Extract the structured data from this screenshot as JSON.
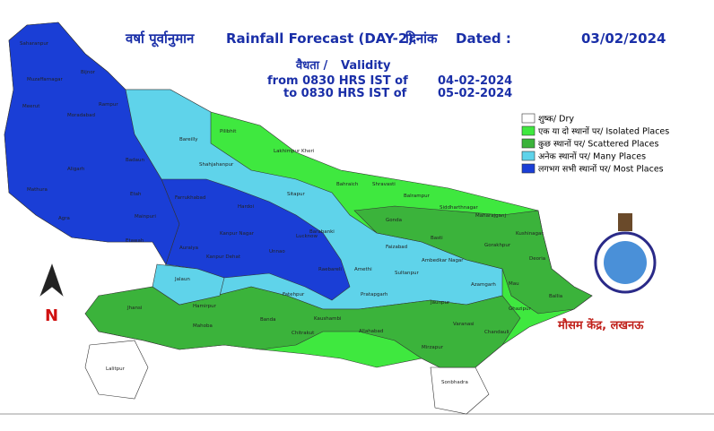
{
  "header": {
    "title_hindi": "वर्षा पूर्वानुमान",
    "title": "Rainfall Forecast (DAY-2)",
    "date_label_hindi": "दिनांक",
    "date_label": "Dated :",
    "date": "03/02/2024"
  },
  "validity": {
    "label_hindi": "वैधता /",
    "label": "Validity",
    "from_line": "from 0830 HRS IST of",
    "from_date": "04-02-2024",
    "to_line": "to 0830 HRS IST of",
    "to_date": "05-02-2024"
  },
  "legend": {
    "items": [
      {
        "label": "शुष्क/ Dry",
        "color": "#ffffff"
      },
      {
        "label": "एक या दो स्थानों पर/ Isolated Places",
        "color": "#3fe83f"
      },
      {
        "label": "कुछ स्थानों पर/ Scattered Places",
        "color": "#3bb33b"
      },
      {
        "label": "अनेक स्थानों पर/ Many Places",
        "color": "#5fd3ea"
      },
      {
        "label": "लगभग सभी स्थानों पर/ Most Places",
        "color": "#1a3ed6"
      }
    ]
  },
  "office": "मौसम केंद्र, लखनऊ",
  "north": "N",
  "districts": [
    "Saharanpur",
    "Muzaffarnagar",
    "Bijnor",
    "Meerut",
    "Moradabad",
    "Rampur",
    "Bareilly",
    "Pilibhit",
    "Lakhimpur Kheri",
    "Shahjahanpur",
    "Badaun",
    "Aligarh",
    "Agra",
    "Mathura",
    "Etah",
    "Mainpuri",
    "Farrukhabad",
    "Hardoi",
    "Sitapur",
    "Bahraich",
    "Shravasti",
    "Balrampur",
    "Gonda",
    "Siddharthnagar",
    "Maharajganj",
    "Basti",
    "Gorakhpur",
    "Kushinagar",
    "Deoria",
    "Barabanki",
    "Lucknow",
    "Unnao",
    "Kanpur Nagar",
    "Kanpur Dehat",
    "Etawah",
    "Auraiya",
    "Jalaun",
    "Hamirpur",
    "Mahoba",
    "Banda",
    "Chitrakut",
    "Fatehpur",
    "Raebareli",
    "Amethi",
    "Faizabad",
    "Ambedkar Nagar",
    "Sultanpur",
    "Azamgarh",
    "Mau",
    "Ballia",
    "Ghazipur",
    "Jaunpur",
    "Pratapgarh",
    "Kaushambi",
    "Allahabad",
    "Varanasi",
    "Chandauli",
    "Mirzapur",
    "Sonbhadra",
    "Jhansi",
    "Lalitpur"
  ]
}
